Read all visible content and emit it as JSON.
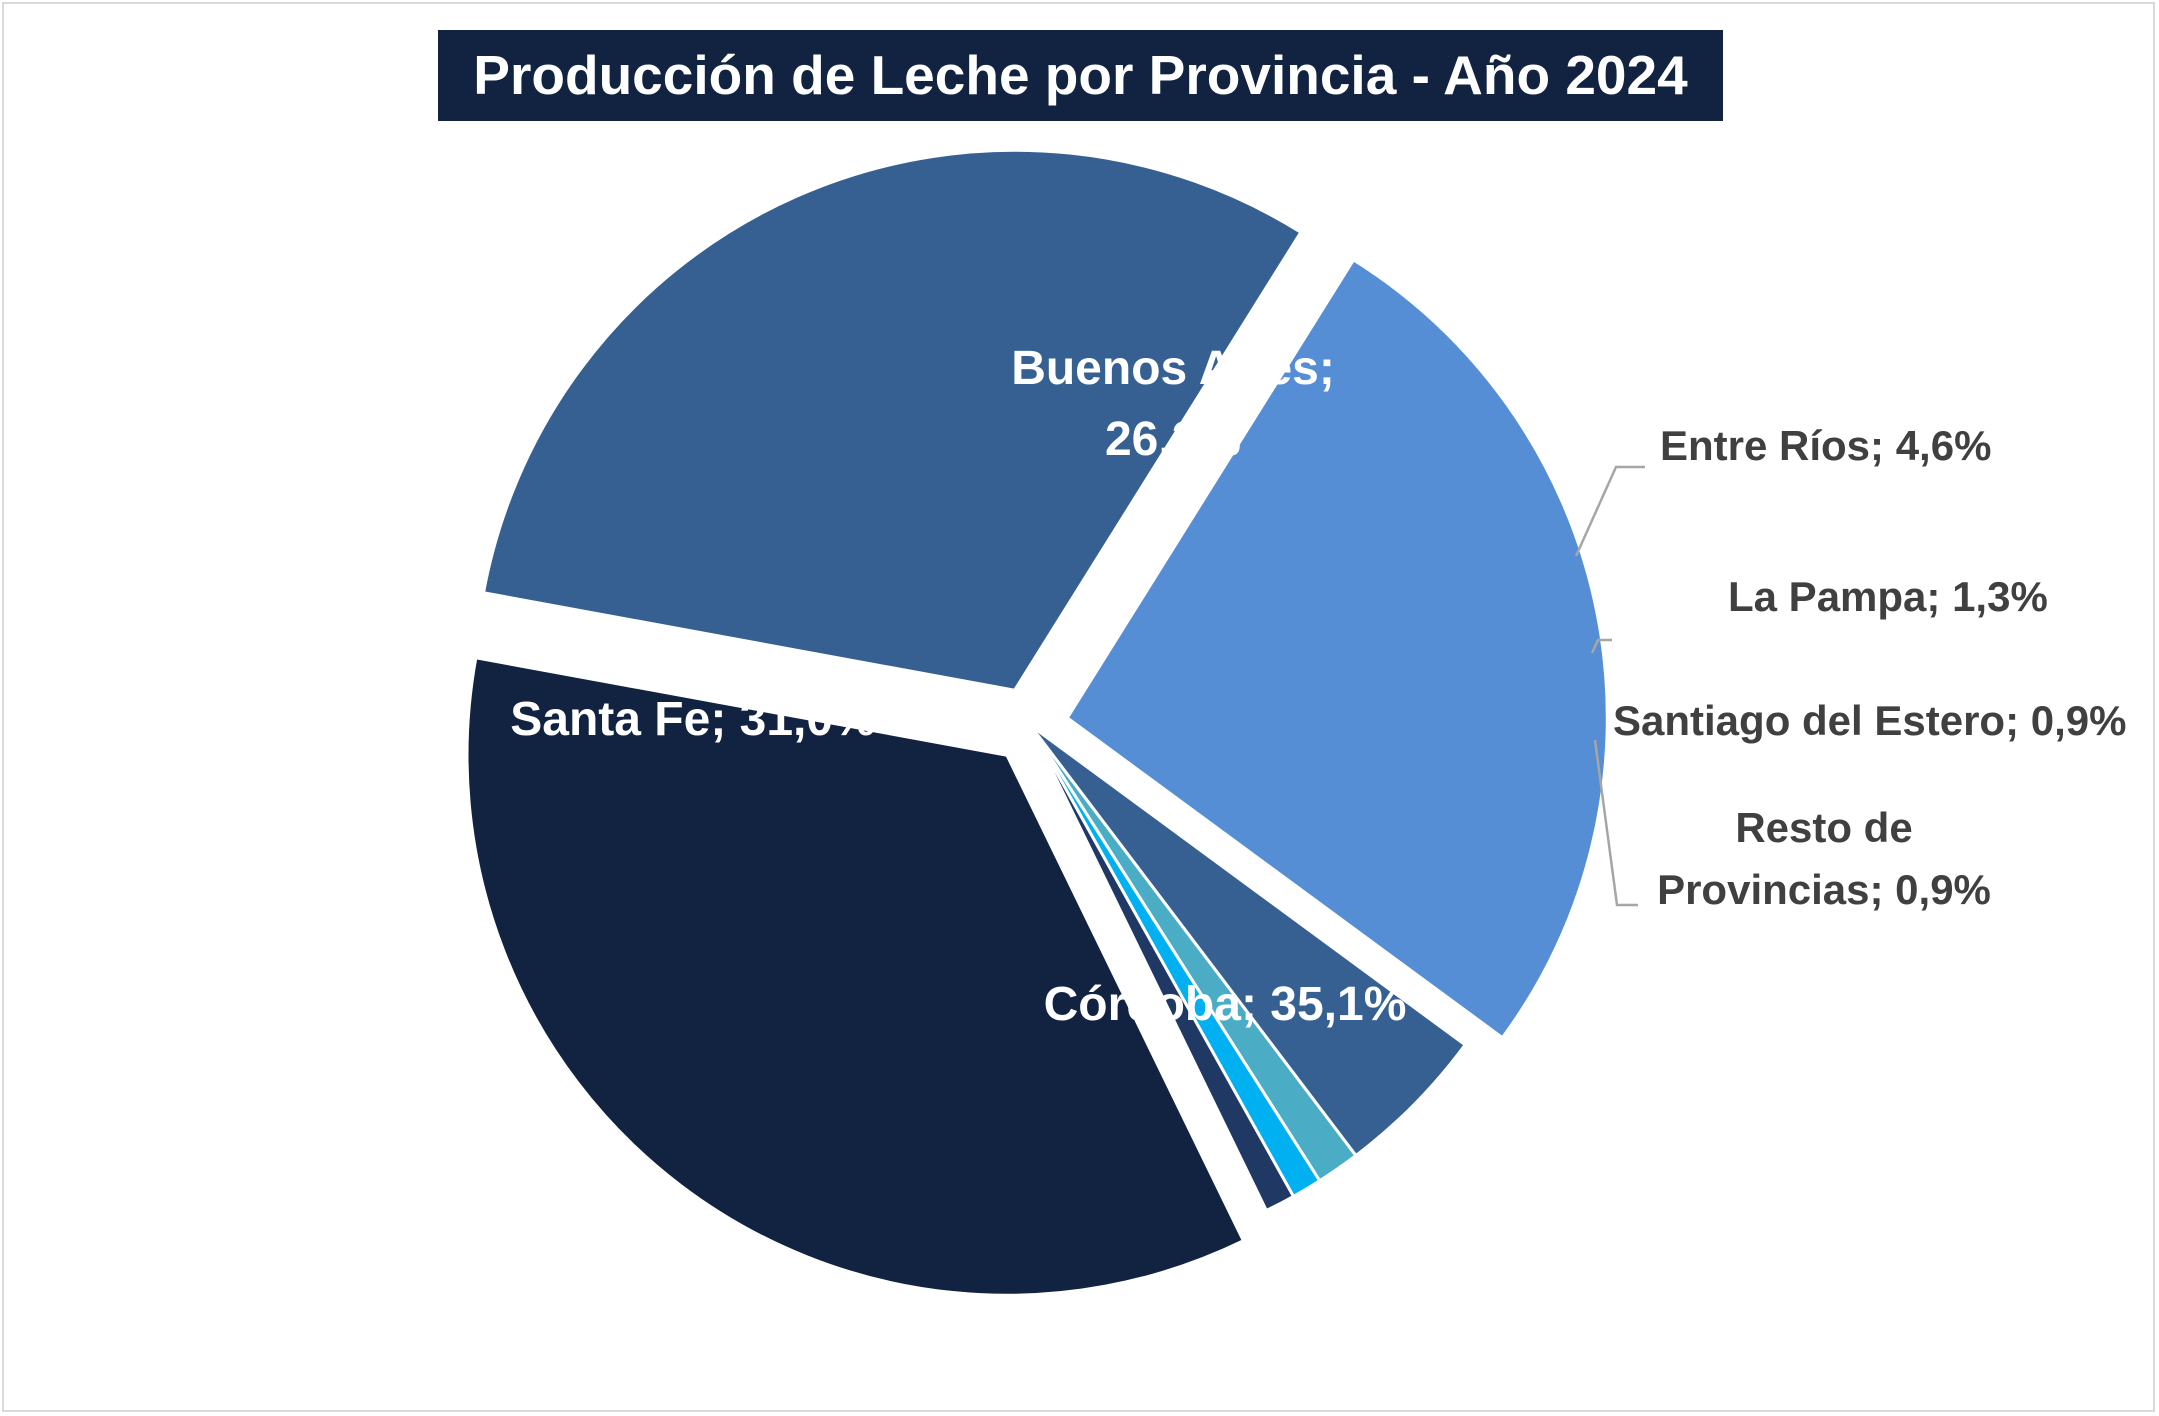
{
  "chart_data": {
    "type": "pie",
    "title": "Producción de Leche por Provincia - Año 2024",
    "unit": "%",
    "colors": {
      "title_bg": "#112340",
      "title_text": "#ffffff",
      "inside_label": "#ffffff",
      "outside_label": "#404040",
      "leader_line": "#a6a6a6"
    },
    "slices": [
      {
        "name": "Buenos Aires",
        "value": 26.2,
        "label": "Buenos Aires;",
        "label2": "26,2%",
        "color": "#558ed5",
        "label_position": "inside"
      },
      {
        "name": "Entre Ríos",
        "value": 4.6,
        "label": "Entre Ríos; 4,6%",
        "color": "#376092",
        "label_position": "outside"
      },
      {
        "name": "La Pampa",
        "value": 1.3,
        "label": "La Pampa; 1,3%",
        "color": "#4bacc6",
        "label_position": "outside"
      },
      {
        "name": "Santiago del Estero",
        "value": 0.9,
        "label": "Santiago del Estero; 0,9%",
        "color": "#00b0f0",
        "label_position": "outside"
      },
      {
        "name": "Resto de Provincias",
        "value": 0.9,
        "label": "Resto de",
        "label2": "Provincias; 0,9%",
        "color": "#1f3864",
        "label_position": "outside"
      },
      {
        "name": "Córdoba",
        "value": 35.1,
        "label": "Córdoba; 35,1%",
        "color": "#112340",
        "label_position": "inside"
      },
      {
        "name": "Santa Fe",
        "value": 31.0,
        "label": "Santa Fe; 31,0%",
        "color": "#376092",
        "label_position": "inside"
      }
    ]
  }
}
